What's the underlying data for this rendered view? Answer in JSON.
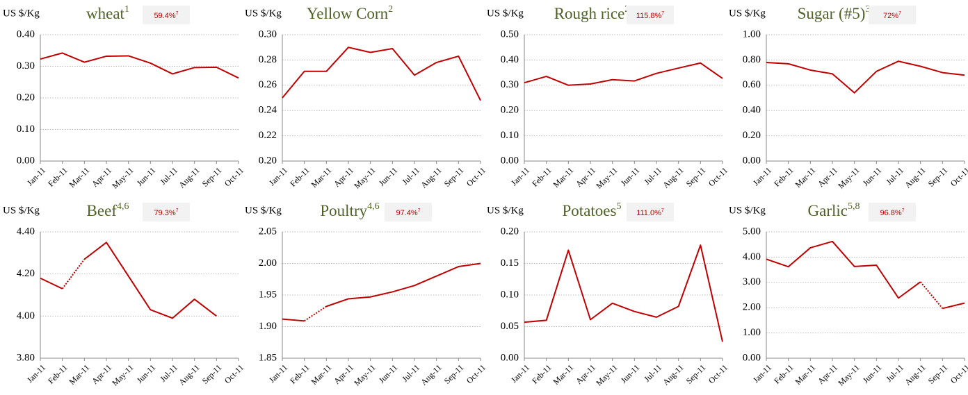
{
  "chart_data": [
    {
      "type": "line",
      "title": "wheat",
      "title_note": "1",
      "badge": "59.4%",
      "badge_note": "7",
      "y_label": "US $/Kg",
      "categories": [
        "Jan-11",
        "Feb-11",
        "Mar-11",
        "Apr-11",
        "May-11",
        "Jun-11",
        "Jul-11",
        "Aug-11",
        "Sep-11",
        "Oct-11"
      ],
      "series": [
        {
          "color": "#c00000",
          "values": [
            0.323,
            0.342,
            0.313,
            0.332,
            0.333,
            0.31,
            0.276,
            0.296,
            0.297,
            0.263
          ]
        }
      ],
      "ylim": [
        0,
        0.4
      ],
      "yticks": [
        {
          "value": 0,
          "label": "0.00"
        },
        {
          "value": 0.1,
          "label": "0.10"
        },
        {
          "value": 0.2,
          "label": "0.20"
        },
        {
          "value": 0.3,
          "label": "0.30"
        },
        {
          "value": 0.4,
          "label": "0.40"
        }
      ],
      "grid": true
    },
    {
      "type": "line",
      "title": "Yellow Corn",
      "title_note": "2",
      "y_label": "US $/Kg",
      "categories": [
        "Jan-11",
        "Feb-11",
        "Mar-11",
        "Apr-11",
        "May-11",
        "Jun-11",
        "Jul-11",
        "Aug-11",
        "Sep-11",
        "Oct-11"
      ],
      "series": [
        {
          "color": "#c00000",
          "values": [
            0.25,
            0.271,
            0.271,
            0.29,
            0.286,
            0.289,
            0.268,
            0.278,
            0.283,
            0.248
          ]
        }
      ],
      "ylim": [
        0.2,
        0.3
      ],
      "yticks": [
        {
          "value": 0.2,
          "label": "0.20"
        },
        0.22,
        0.24,
        0.26,
        0.28,
        {
          "value": 0.3,
          "label": "0.30"
        }
      ],
      "grid": true
    },
    {
      "type": "line",
      "title": "Rough rice",
      "title_note": "2",
      "badge": "115.8%",
      "badge_note": "7",
      "y_label": "US $/Kg",
      "categories": [
        "Jan-11",
        "Feb-11",
        "Mar-11",
        "Apr-11",
        "May-11",
        "Jun-11",
        "Jul-11",
        "Aug-11",
        "Sep-11",
        "Oct-11"
      ],
      "series": [
        {
          "color": "#c00000",
          "values": [
            0.31,
            0.335,
            0.3,
            0.305,
            0.322,
            0.317,
            0.347,
            0.368,
            0.388,
            0.327
          ]
        }
      ],
      "ylim": [
        0,
        0.5
      ],
      "yticks": [
        {
          "value": 0,
          "label": "0.00"
        },
        {
          "value": 0.1,
          "label": "0.10"
        },
        {
          "value": 0.2,
          "label": "0.20"
        },
        {
          "value": 0.3,
          "label": "0.30"
        },
        {
          "value": 0.4,
          "label": "0.40"
        },
        {
          "value": 0.5,
          "label": "0.50"
        }
      ],
      "grid": true
    },
    {
      "type": "line",
      "title": "Sugar (#5)",
      "title_note": "3",
      "badge": "72%",
      "badge_note": "7",
      "y_label": "US $/Kg",
      "categories": [
        "Jan-11",
        "Feb-11",
        "Mar-11",
        "Apr-11",
        "May-11",
        "Jun-11",
        "Jul-11",
        "Aug-11",
        "Sep-11",
        "Oct-11"
      ],
      "series": [
        {
          "color": "#c00000",
          "values": [
            0.78,
            0.77,
            0.72,
            0.69,
            0.54,
            0.71,
            0.79,
            0.75,
            0.7,
            0.68
          ]
        }
      ],
      "ylim": [
        0,
        1
      ],
      "yticks": [
        {
          "value": 0,
          "label": "0.00"
        },
        {
          "value": 0.2,
          "label": "0.20"
        },
        {
          "value": 0.4,
          "label": "0.40"
        },
        {
          "value": 0.6,
          "label": "0.60"
        },
        {
          "value": 0.8,
          "label": "0.80"
        },
        {
          "value": 1,
          "label": "1.00"
        }
      ],
      "grid": true
    },
    {
      "type": "line",
      "title": "Beef",
      "title_note": "4,6",
      "badge": "79.3%",
      "badge_note": "7",
      "y_label": "US $/Kg",
      "categories": [
        "Jan-11",
        "Feb-11",
        "Mar-11",
        "Apr-11",
        "May-11",
        "Jun-11",
        "Jul-11",
        "Aug-11",
        "Sep-11",
        "Oct-11"
      ],
      "series": [
        {
          "color": "#c00000",
          "values": [
            4.18,
            4.13,
            4.27,
            4.35,
            4.19,
            4.03,
            3.99,
            4.08,
            4.0,
            null
          ],
          "dotted_segments": [
            1
          ]
        }
      ],
      "ylim": [
        3.8,
        4.4
      ],
      "yticks": [
        {
          "value": 3.8,
          "label": "3.80"
        },
        {
          "value": 4,
          "label": "4.00"
        },
        {
          "value": 4.2,
          "label": "4.20"
        },
        {
          "value": 4.4,
          "label": "4.40"
        }
      ],
      "grid": true
    },
    {
      "type": "line",
      "title": "Poultry",
      "title_note": "4,6",
      "badge": "97.4%",
      "badge_note": "7",
      "y_label": "US $/Kg",
      "categories": [
        "Jan-11",
        "Feb-11",
        "Mar-11",
        "Apr-11",
        "May-11",
        "Jun-11",
        "Jul-11",
        "Aug-11",
        "Sep-11",
        "Oct-11"
      ],
      "series": [
        {
          "color": "#c00000",
          "values": [
            1.912,
            1.909,
            1.932,
            1.944,
            1.947,
            1.955,
            1.965,
            1.98,
            1.995,
            2.0
          ],
          "dotted_segments": [
            1
          ]
        }
      ],
      "ylim": [
        1.85,
        2.05
      ],
      "yticks": [
        1.85,
        {
          "value": 1.9,
          "label": "1.90"
        },
        1.95,
        {
          "value": 2,
          "label": "2.00"
        },
        2.05
      ],
      "grid": true
    },
    {
      "type": "line",
      "title": "Potatoes",
      "title_note": "5",
      "badge": "111.0%",
      "badge_note": "7",
      "y_label": "US $/Kg",
      "categories": [
        "Jan-11",
        "Feb-11",
        "Mar-11",
        "Apr-11",
        "May-11",
        "Jun-11",
        "Jul-11",
        "Aug-11",
        "Sep-11",
        "Oct-11"
      ],
      "series": [
        {
          "color": "#c00000",
          "values": [
            0.057,
            0.06,
            0.171,
            0.061,
            0.087,
            0.074,
            0.065,
            0.082,
            0.179,
            0.026
          ]
        }
      ],
      "ylim": [
        0,
        0.2
      ],
      "yticks": [
        {
          "value": 0,
          "label": "0.00"
        },
        0.05,
        {
          "value": 0.1,
          "label": "0.10"
        },
        0.15,
        {
          "value": 0.2,
          "label": "0.20"
        }
      ],
      "grid": true
    },
    {
      "type": "line",
      "title": "Garlic",
      "title_note": "5,8",
      "badge": "96.8%",
      "badge_note": "7",
      "y_label": "US $/Kg",
      "categories": [
        "Jan-11",
        "Feb-11",
        "Mar-11",
        "Apr-11",
        "May-11",
        "Jun-11",
        "Jul-11",
        "Aug-11",
        "Sep-11",
        "Oct-11"
      ],
      "series": [
        {
          "color": "#c00000",
          "values": [
            3.92,
            3.62,
            4.37,
            4.62,
            3.63,
            3.68,
            2.38,
            3.02,
            1.97,
            2.18
          ],
          "dotted_segments": [
            7
          ]
        }
      ],
      "ylim": [
        0,
        5
      ],
      "yticks": [
        {
          "value": 0,
          "label": "0.00"
        },
        {
          "value": 1,
          "label": "1.00"
        },
        {
          "value": 2,
          "label": "2.00"
        },
        {
          "value": 3,
          "label": "3.00"
        },
        {
          "value": 4,
          "label": "4.00"
        },
        {
          "value": 5,
          "label": "5.00"
        }
      ],
      "grid": true
    }
  ]
}
